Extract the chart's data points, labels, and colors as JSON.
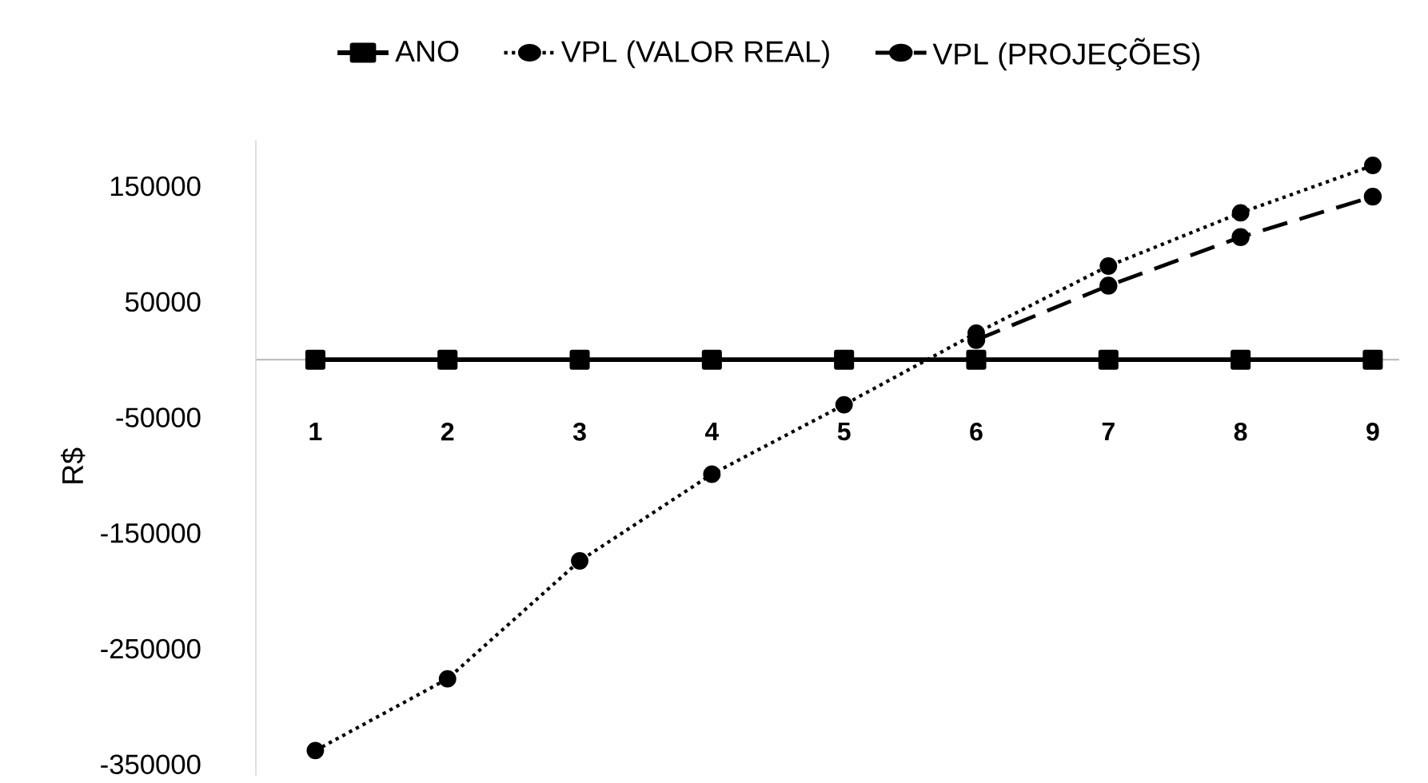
{
  "chart_data": {
    "type": "line",
    "ylabel": "R$",
    "categories": [
      "1",
      "2",
      "3",
      "4",
      "5",
      "6",
      "7",
      "8",
      "9"
    ],
    "series": [
      {
        "name": "ANO",
        "color": "#000000",
        "marker": "square",
        "line_style": "solid",
        "values": [
          0,
          0,
          0,
          0,
          0,
          0,
          0,
          0,
          0
        ]
      },
      {
        "name": "VPL (VALOR REAL)",
        "color": "#000000",
        "marker": "circle",
        "line_style": "dotted",
        "values": [
          -338000,
          -276000,
          -174000,
          -99000,
          -39000,
          23000,
          81000,
          127000,
          168000
        ]
      },
      {
        "name": "VPL (PROJEÇÕES)",
        "color": "#000000",
        "marker": "circle",
        "line_style": "dashed",
        "values": [
          null,
          null,
          null,
          null,
          null,
          17000,
          64000,
          106000,
          141000
        ]
      }
    ],
    "ylim": [
      -360000,
      190000
    ],
    "yticks": [
      150000,
      50000,
      -50000,
      -150000,
      -250000,
      -350000
    ],
    "grid": false,
    "legend": "top"
  }
}
